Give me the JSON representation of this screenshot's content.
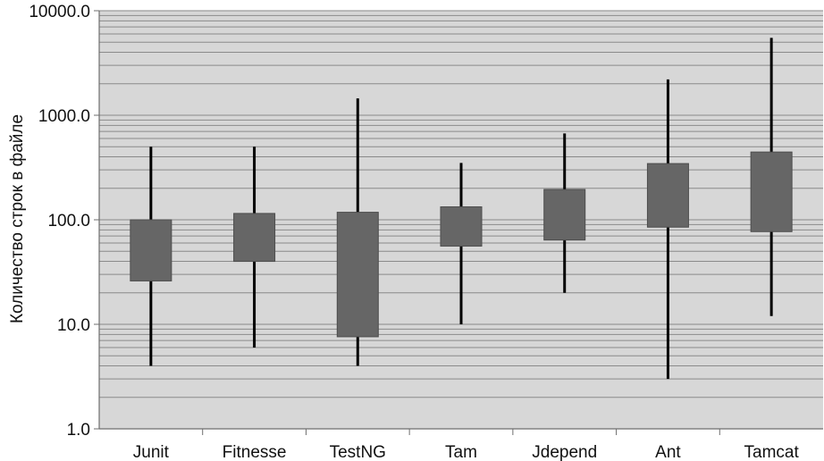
{
  "chart_data": {
    "type": "box",
    "ylabel": "Количество строк в файле",
    "xlabel": "",
    "title": "",
    "yscale": "log",
    "ylim": [
      1,
      10000
    ],
    "yticks": [
      1,
      10,
      100,
      1000,
      10000
    ],
    "ytick_labels": [
      "1.0",
      "10.0",
      "100.0",
      "1000.0",
      "10000.0"
    ],
    "grid": true,
    "categories": [
      "Junit",
      "Fitnesse",
      "TestNG",
      "Tam",
      "Jdepend",
      "Ant",
      "Tamcat"
    ],
    "boxes": [
      {
        "label": "Junit",
        "min": 4,
        "q1": 26,
        "q3": 100,
        "max": 500
      },
      {
        "label": "Fitnesse",
        "min": 6,
        "q1": 40,
        "q3": 115,
        "max": 500
      },
      {
        "label": "TestNG",
        "min": 4,
        "q1": 7.6,
        "q3": 118,
        "max": 1450
      },
      {
        "label": "Tam",
        "min": 10,
        "q1": 56,
        "q3": 133,
        "max": 350
      },
      {
        "label": "Jdepend",
        "min": 20,
        "q1": 64,
        "q3": 195,
        "max": 670
      },
      {
        "label": "Ant",
        "min": 3,
        "q1": 85,
        "q3": 345,
        "max": 2200
      },
      {
        "label": "Tamcat",
        "min": 12,
        "q1": 77,
        "q3": 445,
        "max": 5500
      }
    ],
    "colors": {
      "plot_bg": "#d7d7d7",
      "grid": "#8a8a8a",
      "box": "#666666",
      "whisker": "#000000"
    }
  }
}
